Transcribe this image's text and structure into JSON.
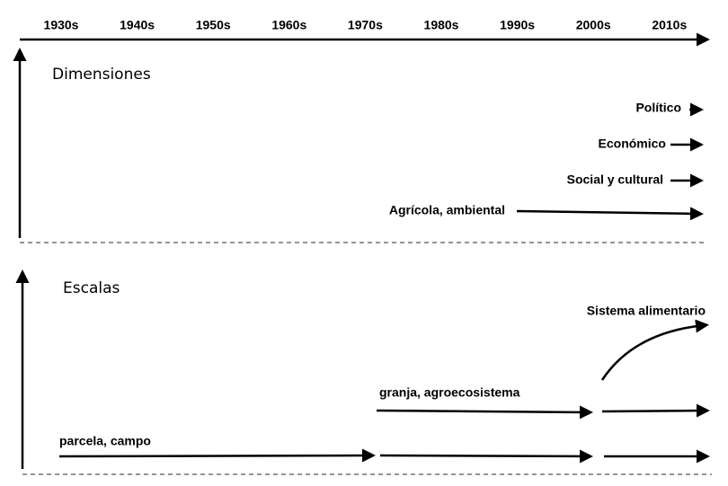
{
  "timeline": {
    "decades": [
      "1930s",
      "1940s",
      "1950s",
      "1960s",
      "1970s",
      "1980s",
      "1990s",
      "2000s",
      "2010s"
    ]
  },
  "dimensions": {
    "title": "Dimensiones",
    "items": [
      "Político",
      "Económico",
      "Social y cultural",
      "Agrícola, ambiental"
    ]
  },
  "scales": {
    "title": "Escalas",
    "items": [
      "Sistema alimentario",
      "granja, agroecosistema",
      "parcela, campo"
    ]
  }
}
